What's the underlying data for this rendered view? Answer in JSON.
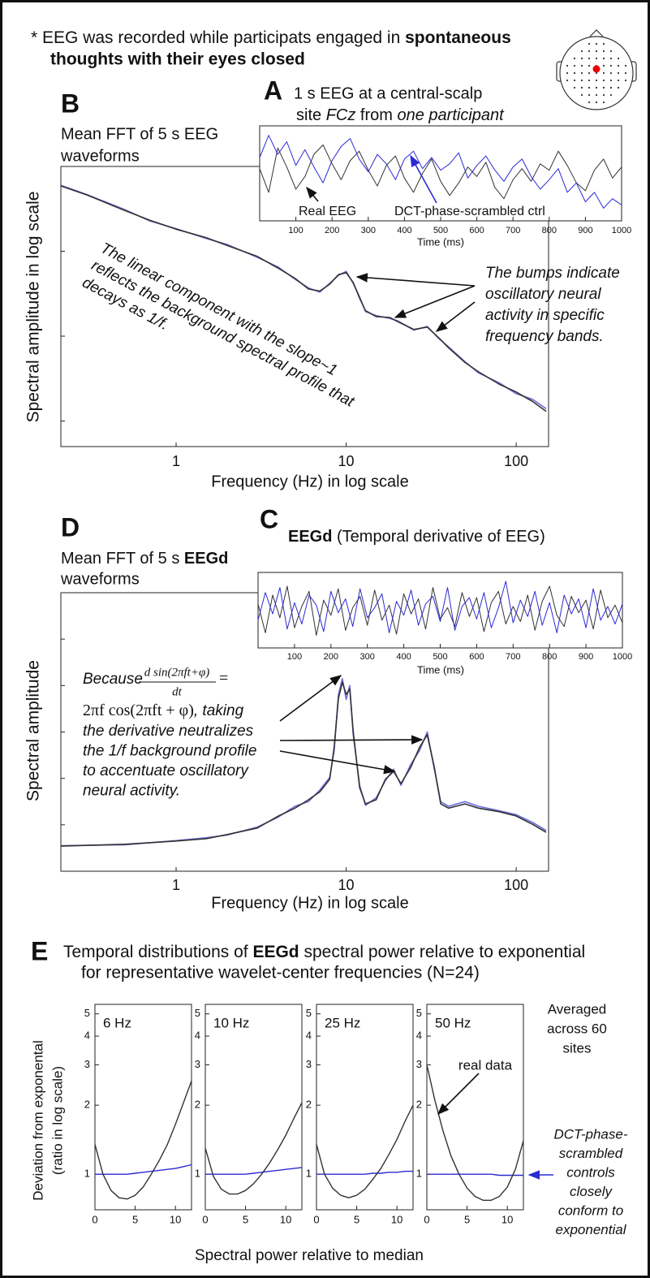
{
  "note": {
    "text": "* EEG was recorded while participats engaged in ",
    "bold_1": "spontaneous",
    "bold_2": "thoughts with their eyes closed"
  },
  "chart_data": [
    {
      "type": "line",
      "panel": "B",
      "title": [
        "Mean FFT of 5 s EEG",
        "waveforms"
      ],
      "xlabel": "Frequency (Hz) in log scale",
      "ylabel": "Spectral amplitude in log scale",
      "xlog": true,
      "ylog": true,
      "xlim": [
        0.21,
        155
      ],
      "ylim": [
        0.05,
        100
      ],
      "xticks": [
        1,
        10,
        100
      ],
      "yticks": [
        0.1,
        1,
        10,
        100
      ],
      "ytick_labels": false,
      "x": [
        0.21,
        0.3,
        0.5,
        0.7,
        1,
        1.5,
        2,
        3,
        4,
        5,
        6,
        7,
        8,
        9,
        10,
        11,
        12,
        13,
        15,
        18,
        20,
        25,
        30,
        35,
        40,
        50,
        60,
        80,
        100,
        125,
        150
      ],
      "series": [
        {
          "color": "#6a6ae0",
          "values": [
            60,
            46.5,
            31,
            22.8,
            18.5,
            14.2,
            12,
            8.5,
            6.5,
            4.7,
            3.7,
            3.3,
            4.2,
            5.2,
            5.8,
            4.2,
            2.9,
            1.95,
            1.75,
            1.62,
            1.52,
            1.18,
            1.3,
            0.94,
            0.75,
            0.5,
            0.37,
            0.28,
            0.21,
            0.18,
            0.14
          ]
        },
        {
          "color": "#333333",
          "values": [
            58.9,
            45.9,
            30.2,
            23.2,
            18.2,
            14.5,
            11.7,
            8.7,
            6.3,
            4.8,
            3.6,
            3.4,
            4.1,
            5.3,
            5.6,
            4.3,
            2.8,
            2.0,
            1.7,
            1.66,
            1.49,
            1.2,
            1.28,
            0.96,
            0.73,
            0.49,
            0.38,
            0.27,
            0.22,
            0.17,
            0.13
          ]
        }
      ],
      "annotations": {
        "slope": [
          "The linear component with the slope~1",
          "reflects the background spectral profile that",
          "decays as 1/f."
        ],
        "bumps": [
          "The bumps indicate",
          "oscillatory neural",
          "activity in specific",
          "frequency bands."
        ]
      }
    },
    {
      "type": "line",
      "panel": "A",
      "title": "1 s EEG at a central-scalp",
      "subtitle": [
        "site ",
        "FCz",
        " from ",
        "one participant"
      ],
      "xlabel": "Time (ms)",
      "xlim": [
        0,
        1000
      ],
      "ylim": [
        -3,
        3
      ],
      "xticks": [
        100,
        200,
        300,
        400,
        500,
        600,
        700,
        800,
        900,
        1000
      ],
      "x": [
        0,
        25,
        50,
        75,
        100,
        125,
        150,
        175,
        200,
        225,
        250,
        275,
        300,
        325,
        350,
        375,
        400,
        425,
        450,
        475,
        500,
        525,
        550,
        575,
        600,
        625,
        650,
        675,
        700,
        725,
        750,
        775,
        800,
        825,
        850,
        875,
        900,
        925,
        950,
        975,
        1000
      ],
      "series": [
        {
          "name": "Real EEG",
          "color": "#333333",
          "values": [
            0.3,
            -1.2,
            1.6,
            0.4,
            -1.0,
            -0.2,
            1.2,
            1.8,
            0.6,
            -0.4,
            0.8,
            1.4,
            0.2,
            -0.8,
            0.5,
            1.1,
            -0.3,
            -1.2,
            0,
            0.9,
            -0.5,
            -1.4,
            -0.6,
            0.4,
            -0.2,
            0.7,
            -0.9,
            -1.6,
            -0.4,
            0.3,
            -0.5,
            0.6,
            0.2,
            1.4,
            0.5,
            -0.6,
            -1.1,
            0.2,
            0.9,
            -0.3,
            0.4
          ]
        },
        {
          "name": "DCT-phase-scrambled ctrl",
          "color": "#2b2bd6",
          "values": [
            1.0,
            2.4,
            1.2,
            2.0,
            0.5,
            1.5,
            0.4,
            -0.6,
            0.8,
            1.7,
            2.2,
            0.9,
            0.1,
            1.2,
            0.6,
            -0.4,
            0.9,
            1.4,
            0.3,
            1.0,
            0.2,
            0.6,
            1.3,
            -0.3,
            0.5,
            1.1,
            0.2,
            -0.5,
            0.4,
            0.9,
            -0.2,
            -1.0,
            -0.4,
            0.3,
            -1.2,
            -0.6,
            -1.8,
            -1.2,
            -2.2,
            -1.6,
            -2.0
          ]
        }
      ]
    },
    {
      "type": "line",
      "panel": "D",
      "title": [
        "Mean FFT of 5 s ",
        "EEGd"
      ],
      "title_line2": "waveforms",
      "xlabel": "Frequency (Hz) in log scale",
      "ylabel": "Spectral amplitude",
      "xlog": true,
      "xlim": [
        0.21,
        155
      ],
      "ylim": [
        0,
        6
      ],
      "xticks": [
        1,
        10,
        100
      ],
      "yticks": [
        1,
        2,
        3,
        4,
        5
      ],
      "ytick_labels": false,
      "x": [
        0.21,
        0.5,
        1,
        1.5,
        2,
        3,
        4,
        5,
        6,
        7,
        8,
        8.5,
        9,
        9.5,
        10,
        10.5,
        11,
        12,
        13,
        15,
        17,
        19,
        21,
        24,
        27,
        30,
        33,
        36,
        40,
        50,
        60,
        80,
        100,
        125,
        150
      ],
      "series": [
        {
          "color": "#6a6ae0",
          "values": [
            0.55,
            0.57,
            0.66,
            0.72,
            0.78,
            0.95,
            1.17,
            1.4,
            1.5,
            1.75,
            2.02,
            2.6,
            3.8,
            4.15,
            3.7,
            4.0,
            2.95,
            1.85,
            1.42,
            1.58,
            1.95,
            2.2,
            1.85,
            2.3,
            2.6,
            3.0,
            2.2,
            1.5,
            1.4,
            1.5,
            1.4,
            1.3,
            1.22,
            1.05,
            0.88
          ]
        },
        {
          "color": "#333333",
          "values": [
            0.54,
            0.58,
            0.65,
            0.7,
            0.79,
            0.93,
            1.19,
            1.36,
            1.54,
            1.71,
            1.98,
            2.67,
            3.72,
            4.07,
            3.81,
            3.93,
            3.02,
            1.8,
            1.45,
            1.54,
            1.98,
            2.15,
            1.89,
            2.24,
            2.67,
            2.94,
            2.24,
            1.45,
            1.36,
            1.45,
            1.36,
            1.28,
            1.19,
            1.01,
            0.84
          ]
        }
      ],
      "annotation": {
        "because": "Because ",
        "numerator": "d sin(2πft+φ)",
        "denominator": "dt",
        "equals": "=",
        "math": "2πf cos(2πft + φ)",
        "math_tail": ", taking",
        "lines": [
          "the derivative neutralizes",
          "the 1/f background profile",
          "to accentuate oscillatory",
          "neural activity."
        ]
      }
    },
    {
      "type": "line",
      "panel": "C",
      "title": [
        "EEGd",
        " (Temporal derivative of EEG)"
      ],
      "xlabel": "Time (ms)",
      "xlim": [
        0,
        1000
      ],
      "ylim": [
        -3,
        3
      ],
      "xticks": [
        100,
        200,
        300,
        400,
        500,
        600,
        700,
        800,
        900,
        1000
      ],
      "x": [
        0,
        20,
        40,
        60,
        80,
        100,
        120,
        140,
        160,
        180,
        200,
        220,
        240,
        260,
        280,
        300,
        320,
        340,
        360,
        380,
        400,
        420,
        440,
        460,
        480,
        500,
        520,
        540,
        560,
        580,
        600,
        620,
        640,
        660,
        680,
        700,
        720,
        740,
        760,
        780,
        800,
        820,
        840,
        860,
        880,
        900,
        920,
        940,
        960,
        980,
        1000
      ],
      "series": [
        {
          "color": "#333333",
          "values": [
            0.5,
            -1.8,
            1.2,
            -0.6,
            1.9,
            -1.4,
            0.3,
            1.5,
            -2.0,
            0.8,
            -0.4,
            1.7,
            -1.6,
            0.2,
            1.1,
            -1.2,
            1.6,
            -0.8,
            0.4,
            -1.9,
            1.3,
            -0.3,
            0.9,
            -1.5,
            1.8,
            -0.7,
            0.2,
            -1.3,
            1.4,
            -0.5,
            1.0,
            -1.7,
            0.6,
            1.5,
            -1.1,
            0.3,
            -0.9,
            1.2,
            -1.6,
            0.7,
            1.9,
            -0.4,
            -1.3,
            1.1,
            -0.2,
            0.8,
            -1.5,
            1.6,
            -0.6,
            0.4,
            -1.0
          ]
        },
        {
          "color": "#2b2bd6",
          "values": [
            -0.8,
            1.4,
            -0.3,
            1.8,
            -1.5,
            0.6,
            -1.1,
            1.2,
            0.4,
            -1.7,
            1.5,
            -0.2,
            0.9,
            -1.3,
            1.7,
            -0.6,
            0.2,
            1.3,
            -1.8,
            0.7,
            -0.4,
            1.6,
            -1.2,
            0.5,
            1.1,
            -0.9,
            1.8,
            -1.6,
            0.3,
            1.0,
            -0.7,
            1.4,
            -1.4,
            0.2,
            2.3,
            -1.0,
            0.8,
            -0.5,
            1.5,
            -1.2,
            0.6,
            -1.8,
            1.2,
            -0.3,
            0.9,
            -1.4,
            1.7,
            -0.8,
            0.3,
            -1.1,
            0.5
          ]
        }
      ]
    },
    {
      "type": "line",
      "title": "6 Hz",
      "ylog": true,
      "xlim": [
        0,
        12
      ],
      "ylim": [
        0.7,
        5.5
      ],
      "xticks": [
        0,
        5,
        10
      ],
      "yticks": [
        1,
        2,
        3,
        4,
        5
      ],
      "x": [
        0,
        1,
        2,
        3,
        4,
        5,
        6,
        7,
        8,
        9,
        10,
        11,
        12
      ],
      "series": [
        {
          "color": "#2b2bd6",
          "values": [
            1.0,
            1.0,
            1.0,
            1.0,
            1.0,
            1.01,
            1.02,
            1.03,
            1.04,
            1.05,
            1.06,
            1.08,
            1.1
          ]
        },
        {
          "color": "#333333",
          "values": [
            1.35,
            1.0,
            0.85,
            0.79,
            0.78,
            0.81,
            0.88,
            1.0,
            1.15,
            1.35,
            1.65,
            2.05,
            2.55
          ]
        }
      ]
    },
    {
      "type": "line",
      "title": "10 Hz",
      "ylog": true,
      "xlim": [
        0,
        12
      ],
      "ylim": [
        0.7,
        5.5
      ],
      "xticks": [
        0,
        5,
        10
      ],
      "yticks": [
        1,
        2,
        3,
        4,
        5
      ],
      "x": [
        0,
        1,
        2,
        3,
        4,
        5,
        6,
        7,
        8,
        9,
        10,
        11,
        12
      ],
      "series": [
        {
          "color": "#2b2bd6",
          "values": [
            1.0,
            1.0,
            1.0,
            1.0,
            1.0,
            1.0,
            1.01,
            1.02,
            1.03,
            1.04,
            1.05,
            1.06,
            1.07
          ]
        },
        {
          "color": "#333333",
          "values": [
            1.3,
            0.98,
            0.86,
            0.82,
            0.82,
            0.85,
            0.91,
            1.0,
            1.12,
            1.28,
            1.48,
            1.75,
            2.05
          ]
        }
      ]
    },
    {
      "type": "line",
      "title": "25 Hz",
      "ylog": true,
      "xlim": [
        0,
        12
      ],
      "ylim": [
        0.7,
        5.5
      ],
      "xticks": [
        0,
        5,
        10
      ],
      "yticks": [
        1,
        2,
        3,
        4,
        5
      ],
      "x": [
        0,
        1,
        2,
        3,
        4,
        5,
        6,
        7,
        8,
        9,
        10,
        11,
        12
      ],
      "series": [
        {
          "color": "#2b2bd6",
          "values": [
            1.0,
            1.0,
            1.0,
            1.0,
            1.0,
            1.0,
            1.0,
            1.01,
            1.01,
            1.02,
            1.02,
            1.03,
            1.03
          ]
        },
        {
          "color": "#333333",
          "values": [
            1.35,
            1.0,
            0.87,
            0.81,
            0.79,
            0.81,
            0.86,
            0.95,
            1.06,
            1.22,
            1.42,
            1.7,
            2.0
          ]
        }
      ]
    },
    {
      "type": "line",
      "title": "50 Hz",
      "ylog": true,
      "xlim": [
        0,
        12
      ],
      "ylim": [
        0.7,
        5.5
      ],
      "xticks": [
        0,
        5,
        10
      ],
      "yticks": [
        1,
        2,
        3,
        4,
        5
      ],
      "x": [
        0,
        1,
        2,
        3,
        4,
        5,
        6,
        7,
        8,
        9,
        10,
        11,
        12
      ],
      "series": [
        {
          "color": "#2b2bd6",
          "values": [
            1.0,
            1.0,
            1.0,
            1.0,
            1.0,
            1.0,
            1.0,
            1.0,
            1.0,
            0.99,
            0.99,
            0.99,
            0.99
          ]
        },
        {
          "color": "#333333",
          "values": [
            3.0,
            2.1,
            1.55,
            1.2,
            1.0,
            0.87,
            0.8,
            0.77,
            0.77,
            0.8,
            0.88,
            1.05,
            1.4
          ]
        }
      ]
    }
  ],
  "panel_e": {
    "label": "E",
    "title": [
      "Temporal distributions of ",
      "EEGd",
      " spectral power relative to exponential"
    ],
    "title_line2": "for representative wavelet-center frequencies (N=24)",
    "ylabel": [
      "Deviation from exponental",
      "(ratio in log scale)"
    ],
    "xlabel": "Spectral power relative to median",
    "note": [
      "Averaged",
      "across 60",
      "sites"
    ],
    "real_label": "real data",
    "control_label": [
      "DCT-phase-",
      "scrambled",
      "controls",
      "closely",
      "conform to",
      "exponential"
    ]
  }
}
